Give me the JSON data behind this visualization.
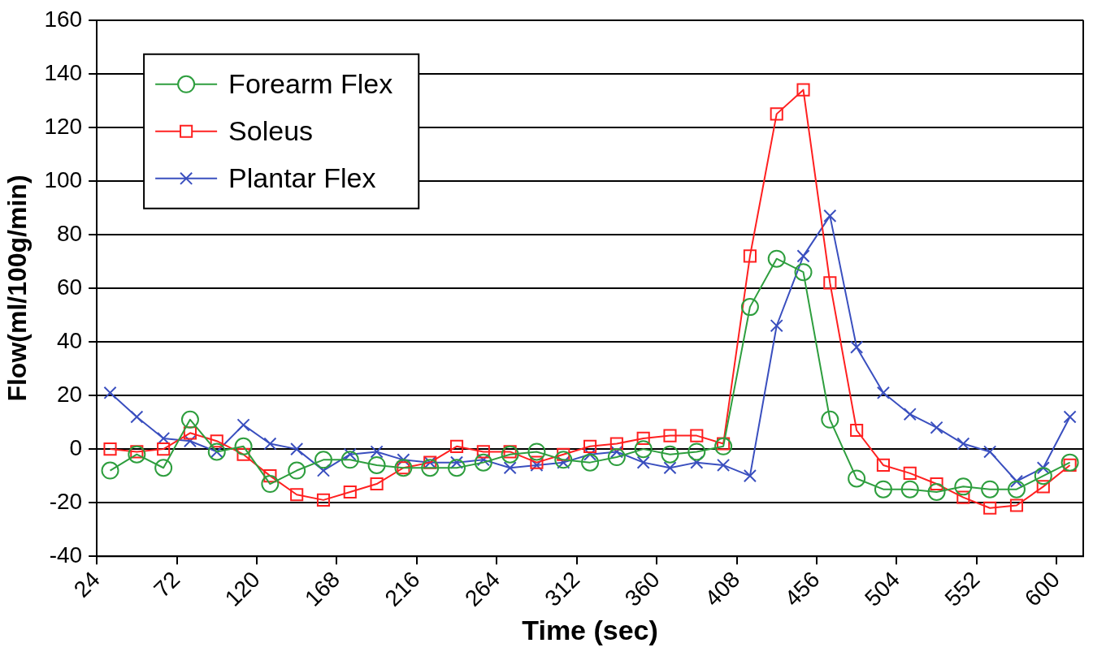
{
  "chart_data": {
    "type": "line",
    "xlabel": "Time (sec)",
    "ylabel": "Flow(ml/100g/min)",
    "x": [
      32,
      48,
      64,
      80,
      96,
      112,
      128,
      144,
      160,
      176,
      192,
      208,
      224,
      240,
      256,
      272,
      288,
      304,
      320,
      336,
      352,
      368,
      384,
      400,
      416,
      432,
      448,
      464,
      480,
      496,
      512,
      528,
      544,
      560,
      576,
      592,
      608
    ],
    "series": [
      {
        "name": "Forearm Flex",
        "color": "#2e9e3e",
        "marker": "circle",
        "values": [
          -8,
          -2,
          -7,
          11,
          -1,
          1,
          -13,
          -8,
          -4,
          -4,
          -6,
          -7,
          -7,
          -7,
          -5,
          -2,
          -1,
          -4,
          -5,
          -3,
          0,
          -2,
          -1,
          1,
          53,
          71,
          66,
          11,
          -11,
          -15,
          -15,
          -16,
          -14,
          -15,
          -15,
          -10,
          -5
        ]
      },
      {
        "name": "Soleus",
        "color": "#ff2020",
        "marker": "square",
        "values": [
          0,
          -1,
          0,
          6,
          3,
          -2,
          -10,
          -17,
          -19,
          -16,
          -13,
          -7,
          -5,
          1,
          -1,
          -1,
          -5,
          -2,
          1,
          2,
          4,
          5,
          5,
          2,
          72,
          125,
          134,
          62,
          7,
          -6,
          -9,
          -13,
          -18,
          -22,
          -21,
          -14,
          -6
        ]
      },
      {
        "name": "Plantar Flex",
        "color": "#3a4fbf",
        "marker": "cross",
        "values": [
          21,
          12,
          4,
          3,
          -1,
          9,
          2,
          0,
          -8,
          -2,
          -1,
          -4,
          -5,
          -5,
          -4,
          -7,
          -6,
          -5,
          -2,
          -1,
          -5,
          -7,
          -5,
          -6,
          -10,
          46,
          72,
          87,
          38,
          21,
          13,
          8,
          2,
          -1,
          -12,
          -7,
          12
        ]
      }
    ],
    "xlim": [
      24,
      616
    ],
    "xticks": [
      24,
      72,
      120,
      168,
      216,
      264,
      312,
      360,
      408,
      456,
      504,
      552,
      600
    ],
    "ylim": [
      -40,
      160
    ],
    "yticks": [
      -40,
      -20,
      0,
      20,
      40,
      60,
      80,
      100,
      120,
      140,
      160
    ],
    "grid": "y",
    "legend": "top left"
  }
}
